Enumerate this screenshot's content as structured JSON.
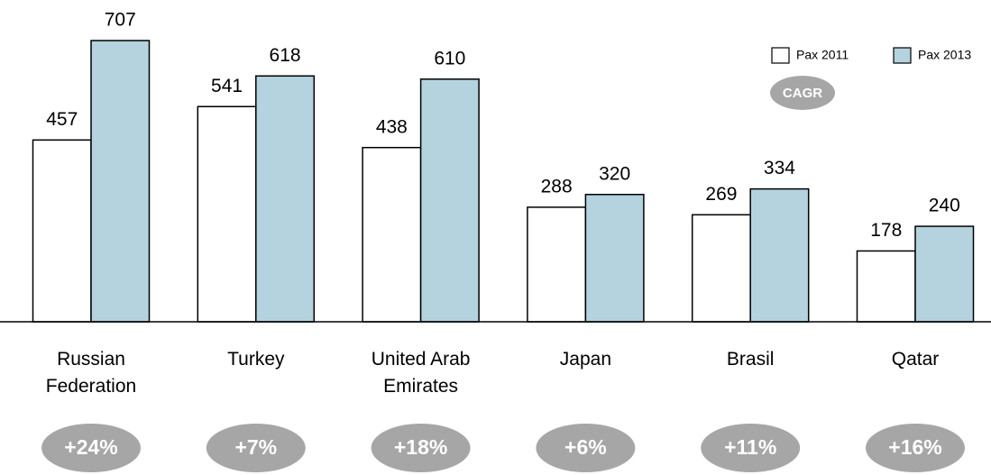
{
  "chart_data": {
    "type": "bar",
    "categories": [
      "Russian Federation",
      "Turkey",
      "United Arab Emirates",
      "Japan",
      "Brasil",
      "Qatar"
    ],
    "series": [
      {
        "name": "Pax 2011",
        "color": "#ffffff",
        "values": [
          457,
          541,
          438,
          288,
          269,
          178
        ]
      },
      {
        "name": "Pax 2013",
        "color": "#b4d3de",
        "values": [
          707,
          618,
          610,
          320,
          334,
          240
        ]
      }
    ],
    "legend": "top-right",
    "cagr": {
      "label": "CAGR",
      "color": "#a6a6a6",
      "values": [
        24,
        7,
        18,
        6,
        11,
        16
      ],
      "value_labels": [
        "+24%",
        "+7%",
        "+18%",
        "+6%",
        "+11%",
        "+16%"
      ]
    }
  }
}
